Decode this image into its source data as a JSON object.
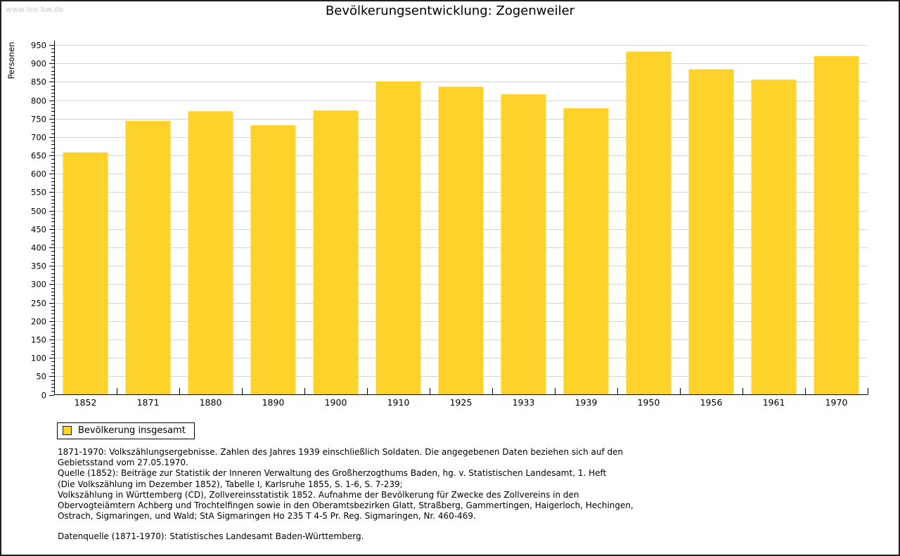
{
  "page": {
    "watermark": "www.leo-bw.de",
    "title": "Bevölkerungsentwicklung: Zogenweiler"
  },
  "chart_data": {
    "type": "bar",
    "title": "Bevölkerungsentwicklung: Zogenweiler",
    "xlabel": "",
    "ylabel": "Personen",
    "categories": [
      "1852",
      "1871",
      "1880",
      "1890",
      "1900",
      "1910",
      "1925",
      "1933",
      "1939",
      "1950",
      "1956",
      "1961",
      "1970"
    ],
    "values": [
      658,
      744,
      770,
      732,
      772,
      851,
      837,
      816,
      778,
      932,
      884,
      856,
      920
    ],
    "ylim": [
      0,
      950
    ],
    "ytick_step": 50,
    "minor_tick_step": 10,
    "yticks": [
      0,
      50,
      100,
      150,
      200,
      250,
      300,
      350,
      400,
      450,
      500,
      550,
      600,
      650,
      700,
      750,
      800,
      850,
      900,
      950
    ],
    "grid": true,
    "grid_color": "#d4d4d4",
    "axis_color": "#000000",
    "bar_color": "#fdd32b",
    "legend": {
      "position": "bottom-left",
      "items": [
        {
          "label": "Bevölkerung insgesamt",
          "color": "#fdd32b"
        }
      ]
    }
  },
  "footnotes": {
    "lines": [
      "1871-1970: Volkszählungsergebnisse. Zahlen des Jahres 1939 einschließlich Soldaten. Die angegebenen Daten beziehen sich auf den",
      "Gebietsstand vom 27.05.1970.",
      "Quelle (1852): Beiträge zur Statistik der Inneren Verwaltung des Großherzogthums Baden, hg. v. Statistischen Landesamt, 1. Heft",
      "(Die Volkszählung im Dezember 1852), Tabelle I, Karlsruhe 1855, S. 1-6, S. 7-239;",
      "Volkszählung in Württemberg (CD), Zollvereinsstatistik 1852. Aufnahme der Bevölkerung für Zwecke des Zollvereins in den",
      "Obervogteiämtern Achberg und Trochtelfingen sowie in den Oberamtsbezirken Glatt, Straßberg, Gammertingen, Haigerloch, Hechingen,",
      "Ostrach, Sigmaringen, und Wald; StA Sigmaringen Ho 235 T 4-5 Pr. Reg. Sigmaringen, Nr. 460-469."
    ],
    "datasource": "Datenquelle (1871-1970): Statistisches Landesamt Baden-Württemberg."
  }
}
